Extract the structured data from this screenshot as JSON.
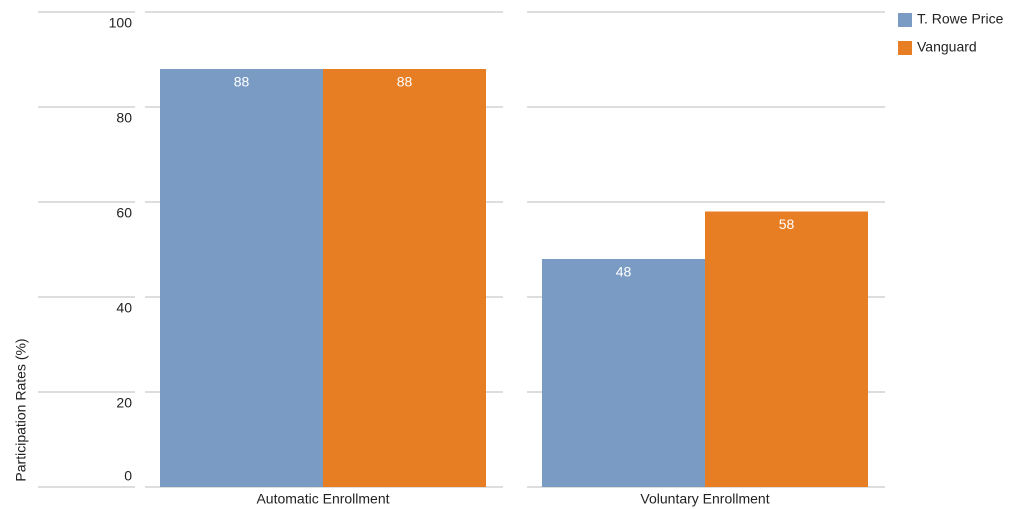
{
  "chart_data": {
    "type": "bar",
    "y_label": "Participation Rates (%)",
    "categories": [
      "Automatic Enrollment",
      "Voluntary Enrollment"
    ],
    "series": [
      {
        "name": "T. Rowe Price",
        "color": "#7a9cc4",
        "values": [
          88,
          48
        ]
      },
      {
        "name": "Vanguard",
        "color": "#e87e24",
        "values": [
          88,
          58
        ]
      }
    ],
    "ylim": [
      0,
      100
    ],
    "yticks": [
      0,
      20,
      40,
      60,
      80,
      100
    ],
    "grid": true,
    "legend": "top-right"
  }
}
